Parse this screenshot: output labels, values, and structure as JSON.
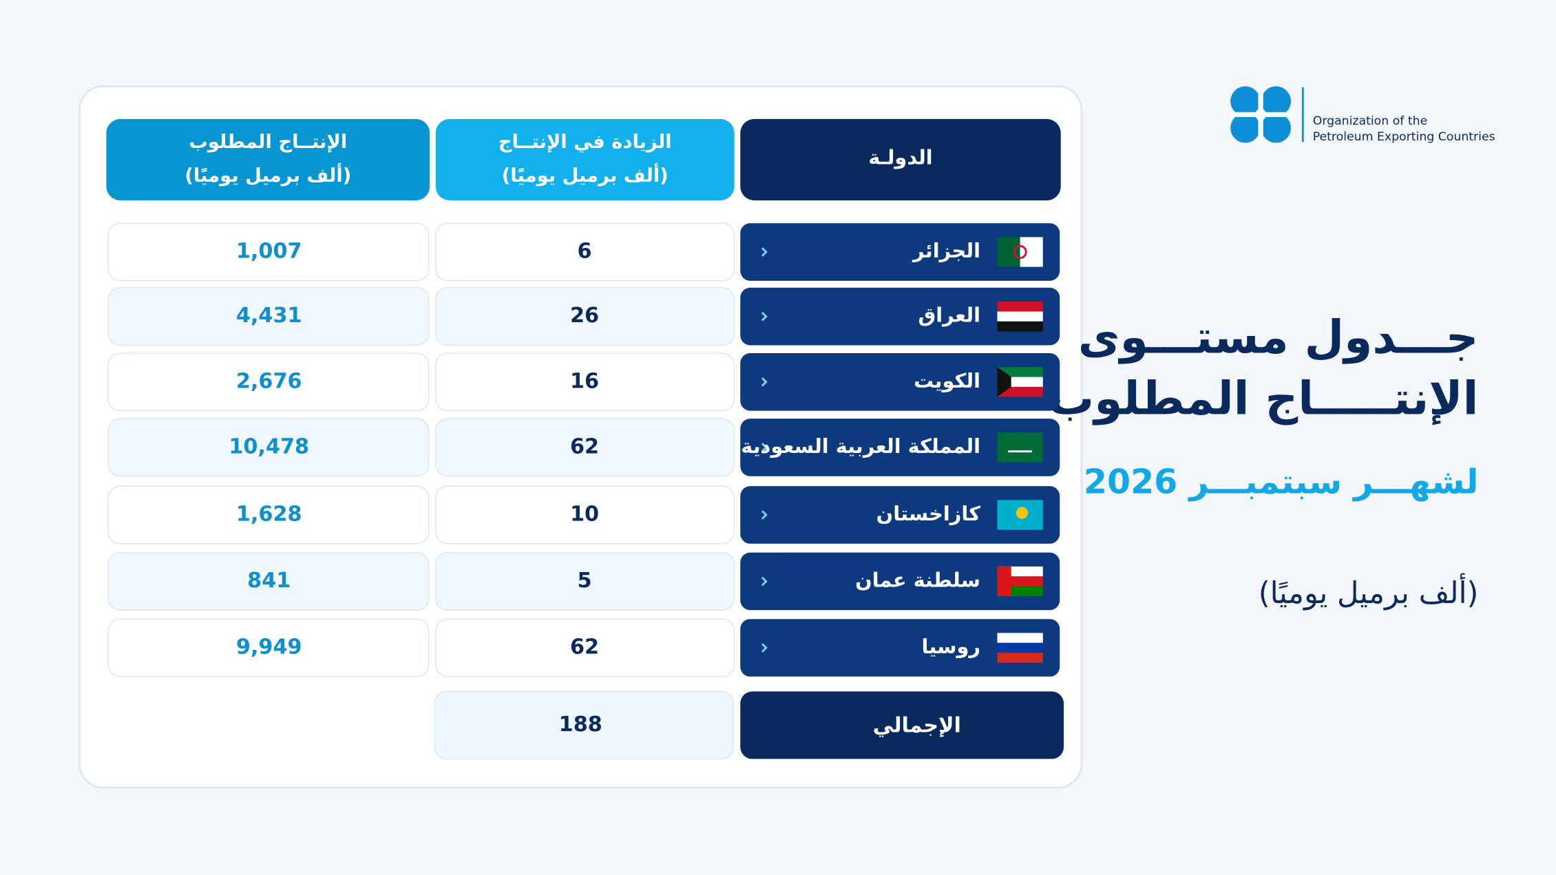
{
  "logo": {
    "line1": "Organization of the",
    "line2": "Petroleum Exporting Countries"
  },
  "title": {
    "line1": "جـــدول مستـــوى",
    "line2": "الإنتـــــاج المطلوب",
    "subtitle": "لشهـــر  سبتمبـــر 2026",
    "unit": "(ألف برميل يوميًا)"
  },
  "table": {
    "headers": [
      {
        "line1": "الدولـة"
      },
      {
        "line1": "الزيادة في الإنتــاج",
        "line2": "(ألف برميل يوميًا)"
      },
      {
        "line1": "الإنتــاج المطلوب",
        "line2": "(ألف برميل يوميًا)"
      }
    ],
    "rows": [
      [
        "الجزائر",
        "6",
        "1,007"
      ],
      [
        "العراق",
        "26",
        "4,431"
      ],
      [
        "الكويت",
        "16",
        "2,676"
      ],
      [
        "المملكة العربية السعودية",
        "62",
        "10,478"
      ],
      [
        "كازاخستان",
        "10",
        "1,628"
      ],
      [
        "سلطنة عمان",
        "5",
        "841"
      ],
      [
        "روسيا",
        "62",
        "9,949"
      ]
    ],
    "total": {
      "label": "الإجمالي",
      "value": "188"
    }
  }
}
